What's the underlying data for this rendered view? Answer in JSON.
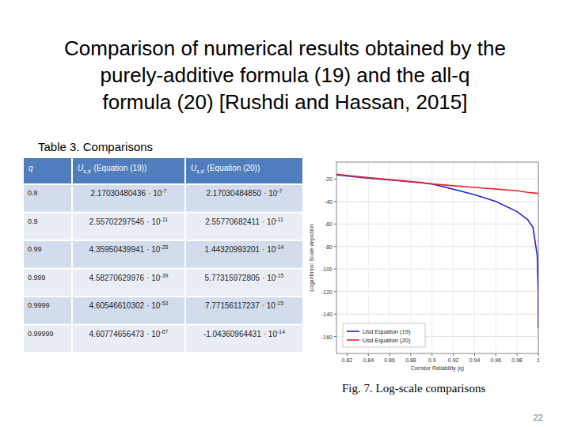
{
  "slide": {
    "title": [
      "Comparison of numerical results obtained by the",
      "purely-additive formula (19) and the all-q",
      "formula  (20) [Rushdi and Hassan, 2015]"
    ],
    "table_caption": "Table 3. Comparisons",
    "table": {
      "header": [
        {
          "symbol": "q"
        },
        {
          "symbol": "U",
          "subscript": "s,d",
          "text": "(Equation (19))"
        },
        {
          "symbol": "U",
          "subscript": "s,d",
          "text": "(Equation (20))"
        }
      ],
      "rows": [
        [
          "0.8",
          {
            "mantissa": "2.17030480436",
            "base": "· 10",
            "exponent": "-7"
          },
          {
            "mantissa": "2.17030484850",
            "base": "· 10",
            "exponent": "-7"
          }
        ],
        [
          "0.9",
          {
            "mantissa": "2.55702297545",
            "base": "· 10",
            "exponent": "-11"
          },
          {
            "mantissa": "2.55770682411",
            "base": "· 10",
            "exponent": "-11"
          }
        ],
        [
          "0.99",
          {
            "mantissa": "4.35950439941",
            "base": "· 10",
            "exponent": "-25"
          },
          {
            "mantissa": "1.44320993201",
            "base": "· 10",
            "exponent": "-14"
          }
        ],
        [
          "0.999",
          {
            "mantissa": "4.58270629976",
            "base": "· 10",
            "exponent": "-39"
          },
          {
            "mantissa": "5.77315972805",
            "base": "· 10",
            "exponent": "-15"
          }
        ],
        [
          "0.9999",
          {
            "mantissa": "4.60546610302",
            "base": "· 10",
            "exponent": "-53"
          },
          {
            "mantissa": "7.77156117237",
            "base": "· 10",
            "exponent": "-15"
          }
        ],
        [
          "0.99999",
          {
            "mantissa": "4.60774656473",
            "base": "· 10",
            "exponent": "-67"
          },
          {
            "mantissa": "-1.04360964431",
            "base": "· 10",
            "exponent": "-14"
          }
        ]
      ]
    },
    "figure_caption": "Fig. 7. Log-scale comparisons",
    "page_number": "22"
  },
  "chart_data": {
    "type": "line",
    "xlabel": "Corridor Reliability (q)",
    "ylabel": "Logarithmic Scale depiction",
    "x": [
      0.81,
      0.83,
      0.85,
      0.87,
      0.89,
      0.9,
      0.92,
      0.94,
      0.96,
      0.98,
      0.99,
      0.995,
      0.999,
      0.9999,
      0.99999
    ],
    "series": [
      {
        "name": "Usd Equation (19)",
        "color": "#2323c8",
        "values": [
          -16.4,
          -18.3,
          -20,
          -21.7,
          -23.4,
          -24.4,
          -29,
          -34,
          -40,
          -49,
          -56.1,
          -63,
          -88.3,
          -120.5,
          -152.7
        ]
      },
      {
        "name": "Usd Equation (20)",
        "color": "#e8262b",
        "values": [
          -15.8,
          -17.8,
          -19.6,
          -21.4,
          -23.2,
          -24.4,
          -26,
          -27.5,
          -29,
          -30.5,
          -31.9,
          -32.3,
          -32.8,
          -32.5,
          null
        ]
      }
    ],
    "xlim": [
      0.81,
      1
    ],
    "ylim": [
      -175,
      -5
    ],
    "xticks": [
      0.82,
      0.84,
      0.86,
      0.88,
      0.9,
      0.92,
      0.94,
      0.96,
      0.98,
      1
    ],
    "yticks": [
      -160,
      -140,
      -120,
      -100,
      -80,
      -60,
      -40,
      -20
    ],
    "grid": true,
    "legend": "lower left"
  }
}
